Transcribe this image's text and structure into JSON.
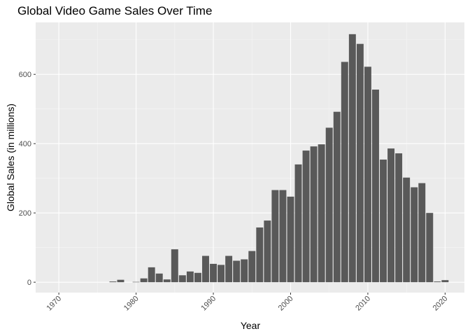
{
  "chart_data": {
    "type": "bar",
    "title": "Global Video Game Sales Over Time",
    "xlabel": "Year",
    "ylabel": "Global Sales (in millions)",
    "xlim": [
      1967,
      2022.5
    ],
    "ylim": [
      -30,
      750
    ],
    "x_ticks": [
      1970,
      1980,
      1990,
      2000,
      2010,
      2020
    ],
    "y_ticks": [
      0,
      200,
      400,
      600
    ],
    "grid": true,
    "bar_color": "#595959",
    "panel_color": "#ebebeb",
    "x": [
      1977,
      1978,
      1980,
      1981,
      1982,
      1983,
      1984,
      1985,
      1986,
      1987,
      1988,
      1989,
      1990,
      1991,
      1992,
      1993,
      1994,
      1995,
      1996,
      1997,
      1998,
      1999,
      2000,
      2001,
      2002,
      2003,
      2004,
      2005,
      2006,
      2007,
      2008,
      2009,
      2010,
      2011,
      2012,
      2013,
      2014,
      2015,
      2016,
      2017,
      2018,
      2019,
      2020
    ],
    "values": [
      2,
      7,
      1,
      11,
      43,
      25,
      8,
      95,
      20,
      31,
      27,
      76,
      53,
      50,
      76,
      62,
      66,
      90,
      158,
      178,
      266,
      266,
      247,
      340,
      380,
      392,
      398,
      446,
      492,
      636,
      716,
      688,
      622,
      556,
      354,
      386,
      372,
      302,
      274,
      286,
      200,
      2,
      6
    ]
  }
}
